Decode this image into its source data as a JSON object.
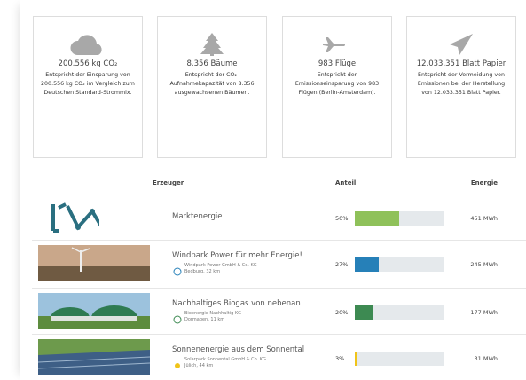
{
  "cards": [
    {
      "title": "200.556 kg CO₂",
      "text": "Entspricht der Einsparung von 200.556 kg CO₂ im Vergleich zum Deutschen Standard-Strommix."
    },
    {
      "title": "8.356 Bäume",
      "text": "Entspricht der CO₂-Aufnahmekapazität von 8.356 ausgewachsenen Bäumen."
    },
    {
      "title": "983 Flüge",
      "text": "Entspricht der Emissionseinsparung von 983 Flügen (Berlin-Amsterdam)."
    },
    {
      "title": "12.033.351 Blatt Papier",
      "text": "Entspricht der Vermeidung von Emissionen bei der Herstellung von 12.033.351 Blatt Papier."
    }
  ],
  "table": {
    "headers": [
      "Erzeuger",
      "Anteil",
      "Energie"
    ],
    "rows": [
      {
        "name": "Marktenergie",
        "share": 50,
        "share_label": "50%",
        "energy": "451 MWh",
        "color": "#8fc15a"
      },
      {
        "name": "Windpark Power für mehr Energie!",
        "company": "Windpark Power GmbH & Co. KG",
        "location": "Bedburg, 32 km",
        "share": 27,
        "share_label": "27%",
        "energy": "245 MWh",
        "color": "#2680b8"
      },
      {
        "name": "Nachhaltiges Biogas von nebenan",
        "company": "Bioenergie Nachhaltig KG",
        "location": "Dormagen, 11 km",
        "share": 20,
        "share_label": "20%",
        "energy": "177 MWh",
        "color": "#3d8a52"
      },
      {
        "name": "Sonnenenergie aus dem Sonnental",
        "company": "Solarpark Sonnental GmbH & Co. KG",
        "location": "Jülich, 44 km",
        "share": 3,
        "share_label": "3%",
        "energy": "31 MWh",
        "color": "#f0c419"
      }
    ]
  }
}
